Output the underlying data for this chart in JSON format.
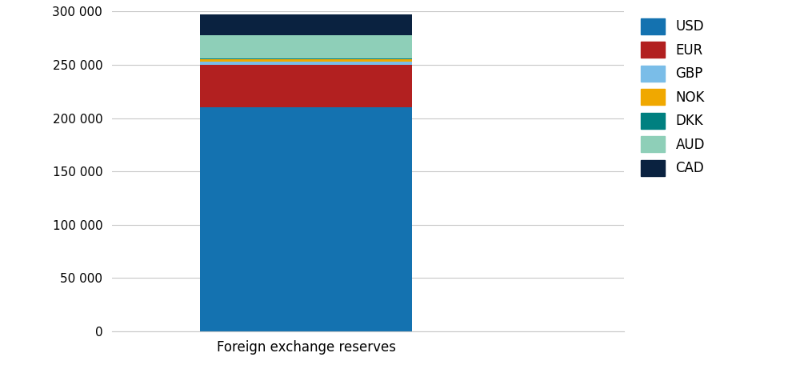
{
  "category": "Foreign exchange reserves",
  "segments": [
    {
      "label": "USD",
      "value": 210000,
      "color": "#1472b0"
    },
    {
      "label": "EUR",
      "value": 40000,
      "color": "#b22020"
    },
    {
      "label": "GBP",
      "value": 3000,
      "color": "#7abde8"
    },
    {
      "label": "NOK",
      "value": 2000,
      "color": "#f0a800"
    },
    {
      "label": "DKK",
      "value": 800,
      "color": "#008080"
    },
    {
      "label": "AUD",
      "value": 22000,
      "color": "#8ecfb8"
    },
    {
      "label": "CAD",
      "value": 19200,
      "color": "#0a2240"
    }
  ],
  "ylim": [
    0,
    300000
  ],
  "yticks": [
    0,
    50000,
    100000,
    150000,
    200000,
    250000,
    300000
  ],
  "xlabel": "Foreign exchange reserves",
  "background_color": "#ffffff",
  "grid_color": "#c8c8c8",
  "bar_width": 0.6,
  "legend_fontsize": 12,
  "tick_fontsize": 11,
  "xlabel_fontsize": 12
}
